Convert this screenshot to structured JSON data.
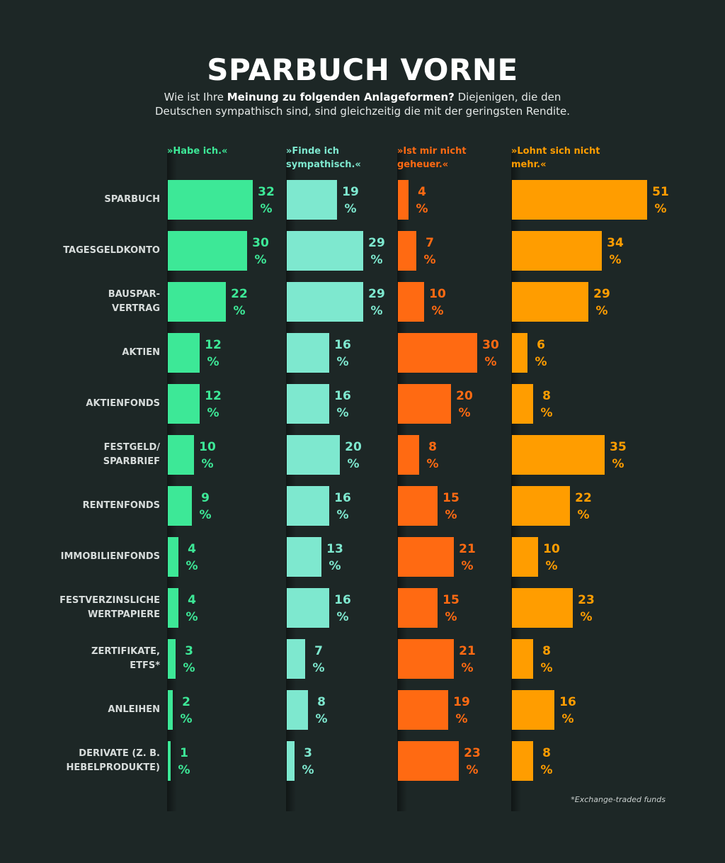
{
  "chart_data": {
    "type": "bar",
    "title": "SPARBUCH VORNE",
    "subtitle": {
      "pre": "Wie ist Ihre ",
      "bold": "Meinung zu folgenden Anlageformen?",
      "post": " Diejenigen, die den Deutschen sympathisch sind, sind gleichzeitig die mit der geringsten Rendite."
    },
    "unit": "%",
    "categories": [
      "SPARBUCH",
      "TAGESGELDKONTO",
      "BAUSPAR-\nVERTRAG",
      "AKTIEN",
      "AKTIENFONDS",
      "FESTGELD/\nSPARBRIEF",
      "RENTENFONDS",
      "IMMOBILIENFONDS",
      "FESTVERZINSLICHE\nWERTPAPIERE",
      "ZERTIFIKATE,\nETFS*",
      "ANLEIHEN",
      "DERIVATE (Z. B.\nHEBELPRODUKTE)"
    ],
    "series": [
      {
        "name": "»Habe ich.«",
        "color": "#3de897",
        "values": [
          32,
          30,
          22,
          12,
          12,
          10,
          9,
          4,
          4,
          3,
          2,
          1
        ]
      },
      {
        "name": "»Finde ich sympathisch.«",
        "color": "#7ee8cf",
        "values": [
          19,
          29,
          29,
          16,
          16,
          20,
          16,
          13,
          16,
          7,
          8,
          3
        ]
      },
      {
        "name": "»Ist mir nicht geheuer.«",
        "color": "#ff6a12",
        "values": [
          4,
          7,
          10,
          30,
          20,
          8,
          15,
          21,
          15,
          21,
          19,
          23
        ]
      },
      {
        "name": "»Lohnt sich nicht mehr.«",
        "color": "#ff9d00",
        "values": [
          51,
          34,
          29,
          6,
          8,
          35,
          22,
          10,
          23,
          8,
          16,
          8
        ]
      }
    ]
  },
  "footnote": "*Exchange-traded funds"
}
